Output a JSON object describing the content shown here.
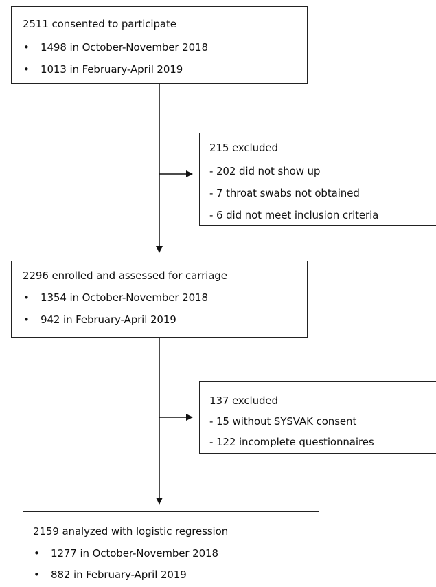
{
  "box1": {
    "title": "2511 consented to participate",
    "items": [
      "1498 in October-November 2018",
      "1013 in February-April 2019"
    ]
  },
  "excluded1": {
    "title": "215 excluded",
    "items": [
      "- 202 did not show up",
      "- 7 throat swabs not obtained",
      "- 6 did not meet inclusion criteria"
    ]
  },
  "box2": {
    "title": "2296 enrolled and assessed for carriage",
    "items": [
      "1354 in October-November 2018",
      "942 in February-April 2019"
    ]
  },
  "excluded2": {
    "title": "137 excluded",
    "items": [
      "- 15 without SYSVAK consent",
      "- 122 incomplete questionnaires"
    ]
  },
  "box3": {
    "title": "2159 analyzed with logistic regression",
    "items": [
      "1277 in October-November 2018",
      "882 in February-April 2019"
    ]
  },
  "bullet_symbol": "•"
}
